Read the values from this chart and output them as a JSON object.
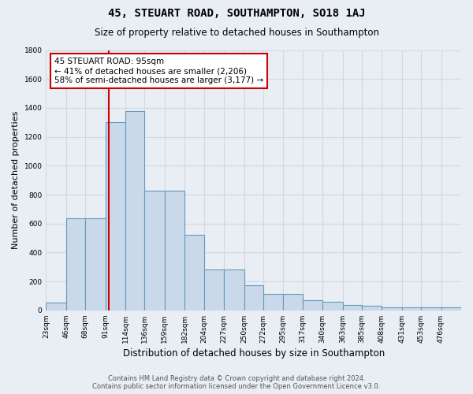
{
  "title": "45, STEUART ROAD, SOUTHAMPTON, SO18 1AJ",
  "subtitle": "Size of property relative to detached houses in Southampton",
  "xlabel": "Distribution of detached houses by size in Southampton",
  "ylabel": "Number of detached properties",
  "annotation_line1": "45 STEUART ROAD: 95sqm",
  "annotation_line2": "← 41% of detached houses are smaller (2,206)",
  "annotation_line3": "58% of semi-detached houses are larger (3,177) →",
  "footer_line1": "Contains HM Land Registry data © Crown copyright and database right 2024.",
  "footer_line2": "Contains public sector information licensed under the Open Government Licence v3.0.",
  "bin_edges": [
    23,
    46,
    68,
    91,
    114,
    136,
    159,
    182,
    204,
    227,
    250,
    272,
    295,
    317,
    340,
    363,
    385,
    408,
    431,
    453,
    476
  ],
  "bar_heights": [
    55,
    635,
    635,
    1300,
    1380,
    830,
    830,
    520,
    280,
    280,
    175,
    115,
    115,
    70,
    60,
    35,
    30,
    20,
    20,
    20,
    20
  ],
  "property_size": 95,
  "bar_color": "#c9d9ea",
  "bar_edge_color": "#6699bb",
  "red_line_color": "#cc0000",
  "background_color": "#e8eef4",
  "grid_color": "#d0d8e0",
  "annotation_box_color": "#ffffff",
  "annotation_border_color": "#cc0000",
  "ylim": [
    0,
    1800
  ],
  "yticks": [
    0,
    200,
    400,
    600,
    800,
    1000,
    1200,
    1400,
    1600,
    1800
  ],
  "title_fontsize": 10,
  "subtitle_fontsize": 8.5,
  "ylabel_fontsize": 8,
  "xlabel_fontsize": 8.5,
  "tick_fontsize": 6.5,
  "footer_fontsize": 6
}
